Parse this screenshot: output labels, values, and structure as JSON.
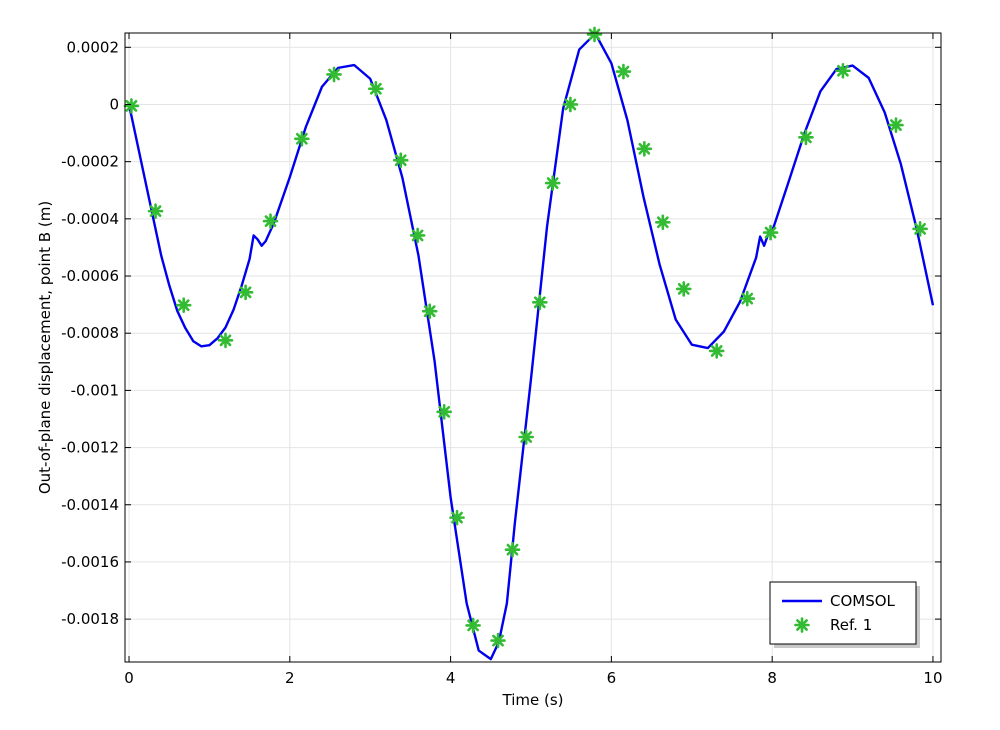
{
  "chart_data": {
    "type": "line",
    "xlabel": "Time (s)",
    "ylabel": "Out-of-plane displacement, point B (m)",
    "xlim": [
      -0.05,
      10.1
    ],
    "ylim": [
      -0.00195,
      0.00025
    ],
    "grid": true,
    "legend_position": "bottom-right",
    "x_ticks": [
      {
        "value": 0,
        "label": "0"
      },
      {
        "value": 2,
        "label": "2"
      },
      {
        "value": 4,
        "label": "4"
      },
      {
        "value": 6,
        "label": "6"
      },
      {
        "value": 8,
        "label": "8"
      },
      {
        "value": 10,
        "label": "10"
      }
    ],
    "y_ticks": [
      {
        "value": 0.0002,
        "label": "0.0002"
      },
      {
        "value": 0,
        "label": "0"
      },
      {
        "value": -0.0002,
        "label": "-0.0002"
      },
      {
        "value": -0.0004,
        "label": "-0.0004"
      },
      {
        "value": -0.0006,
        "label": "-0.0006"
      },
      {
        "value": -0.0008,
        "label": "-0.0008"
      },
      {
        "value": -0.001,
        "label": "-0.001"
      },
      {
        "value": -0.0012,
        "label": "-0.0012"
      },
      {
        "value": -0.0014,
        "label": "-0.0014"
      },
      {
        "value": -0.0016,
        "label": "-0.0016"
      },
      {
        "value": -0.0018,
        "label": "-0.0018"
      }
    ],
    "series": [
      {
        "name": "COMSOL",
        "kind": "line",
        "color": "#0000ee",
        "x": [
          0.0,
          0.1,
          0.2,
          0.3,
          0.4,
          0.5,
          0.6,
          0.7,
          0.8,
          0.9,
          1.0,
          1.1,
          1.2,
          1.3,
          1.4,
          1.5,
          1.55,
          1.6,
          1.65,
          1.7,
          1.8,
          2.0,
          2.2,
          2.4,
          2.6,
          2.8,
          3.0,
          3.2,
          3.4,
          3.6,
          3.8,
          4.0,
          4.2,
          4.35,
          4.5,
          4.6,
          4.7,
          4.8,
          5.0,
          5.2,
          5.4,
          5.6,
          5.8,
          6.0,
          6.2,
          6.4,
          6.6,
          6.8,
          7.0,
          7.2,
          7.4,
          7.6,
          7.8,
          7.85,
          7.9,
          7.95,
          8.0,
          8.2,
          8.4,
          8.6,
          8.8,
          9.0,
          9.2,
          9.4,
          9.6,
          9.8,
          10.0
        ],
        "y": [
          0.0,
          -0.000132,
          -0.000264,
          -0.000396,
          -0.000528,
          -0.000632,
          -0.000722,
          -0.000782,
          -0.000828,
          -0.000846,
          -0.000842,
          -0.000818,
          -0.00078,
          -0.000718,
          -0.000635,
          -0.00054,
          -0.000458,
          -0.000472,
          -0.000494,
          -0.000478,
          -0.000416,
          -0.000254,
          -7.8e-05,
          6.2e-05,
          0.000128,
          0.000138,
          9e-05,
          -5.4e-05,
          -0.000256,
          -0.000528,
          -0.000896,
          -0.001374,
          -0.001745,
          -0.00191,
          -0.00194,
          -0.00188,
          -0.001745,
          -0.001462,
          -0.00096,
          -0.000426,
          -1.4e-05,
          0.000192,
          0.000248,
          0.000144,
          -5.6e-05,
          -0.000324,
          -0.00056,
          -0.000752,
          -0.00084,
          -0.000852,
          -0.000794,
          -0.00069,
          -0.000536,
          -0.000462,
          -0.000494,
          -0.000454,
          -0.000444,
          -0.000274,
          -0.000102,
          4.6e-05,
          0.000124,
          0.000136,
          9.3e-05,
          -2.8e-05,
          -0.000208,
          -0.000438,
          -0.000702
        ]
      },
      {
        "name": "Ref. 1",
        "kind": "marker",
        "marker": "asterisk",
        "color": "#33bb33",
        "x": [
          0.03,
          0.33,
          0.68,
          1.2,
          1.45,
          1.76,
          2.15,
          2.55,
          3.07,
          3.38,
          3.59,
          3.74,
          3.92,
          4.08,
          4.28,
          4.59,
          4.77,
          4.94,
          5.11,
          5.27,
          5.49,
          5.79,
          6.15,
          6.41,
          6.64,
          6.9,
          7.31,
          7.69,
          7.98,
          8.42,
          8.88,
          9.54,
          9.84
        ],
        "y": [
          -5e-06,
          -0.000373,
          -0.000702,
          -0.000825,
          -0.000657,
          -0.000408,
          -0.00012,
          0.000105,
          5.5e-05,
          -0.000195,
          -0.000458,
          -0.000723,
          -0.001075,
          -0.001445,
          -0.001822,
          -0.001875,
          -0.001557,
          -0.001163,
          -0.000692,
          -0.000275,
          0.0,
          0.000245,
          0.000115,
          -0.000155,
          -0.000412,
          -0.000645,
          -0.000862,
          -0.000679,
          -0.000448,
          -0.000115,
          0.000118,
          -7.2e-05,
          -0.000435
        ]
      }
    ]
  }
}
